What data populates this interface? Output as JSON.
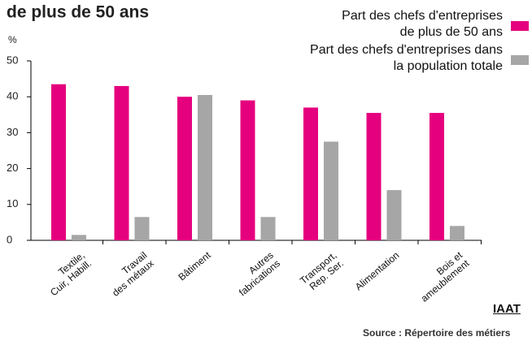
{
  "chart_data": {
    "type": "bar",
    "title": "de plus de 50 ans",
    "y_label": "%",
    "categories": [
      "Textile,\nCuir, Habill.",
      "Travail\ndes métaux",
      "Bâtiment",
      "Autres\nfabrications",
      "Transport,\nRep. Ser.",
      "Alimentation",
      "Bois et\nameublement"
    ],
    "series": [
      {
        "name": "Part des chefs d'entreprises\nde plus de 50 ans",
        "color": "#e5007e",
        "values": [
          43.5,
          43,
          40,
          39,
          37,
          35.5,
          35.5
        ]
      },
      {
        "name": "Part des chefs d'entreprises dans\nla population totale",
        "color": "#a6a6a6",
        "values": [
          1.5,
          6.5,
          40.5,
          6.5,
          27.5,
          14,
          4
        ]
      }
    ],
    "ylim": [
      0,
      50
    ],
    "yticks": [
      0,
      10,
      20,
      30,
      40,
      50
    ],
    "grid": false,
    "legend": "top-right",
    "brand": "IAAT",
    "source": "Source : Répertoire des métiers"
  }
}
